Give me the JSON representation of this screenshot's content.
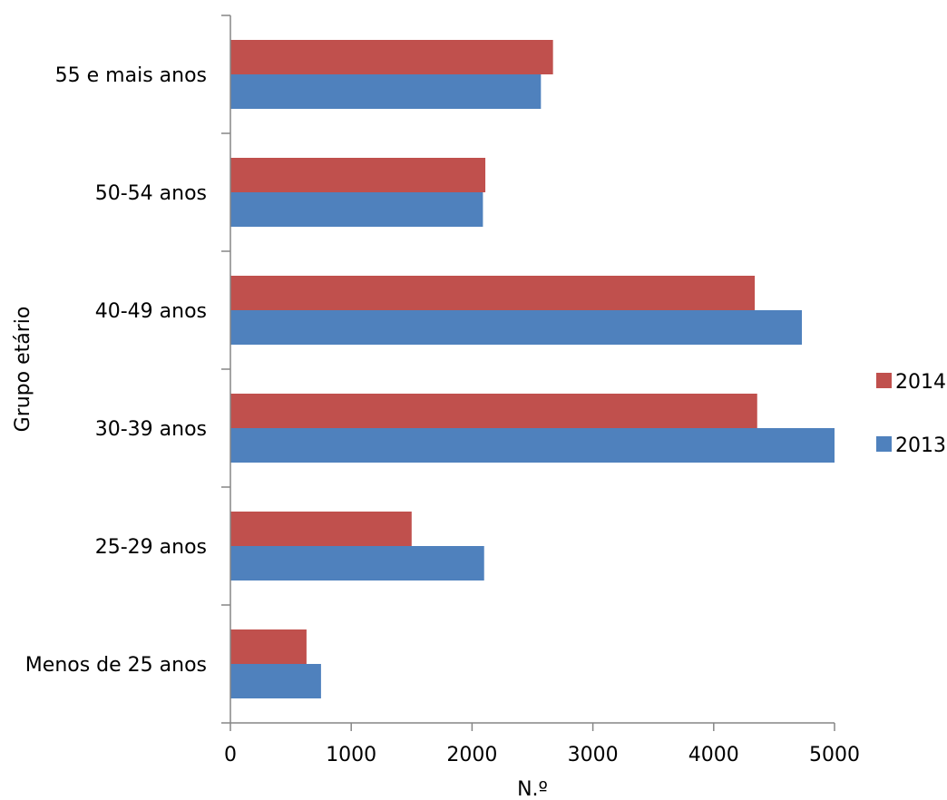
{
  "chart_data": {
    "type": "bar",
    "orientation": "horizontal",
    "title": "",
    "xlabel": "N.º",
    "ylabel": "Grupo etário",
    "categories": [
      "55 e mais anos",
      "50-54 anos",
      "40-49 anos",
      "30-39 anos",
      "25-29 anos",
      "Menos de 25 anos"
    ],
    "series": [
      {
        "name": "2014",
        "color": "#C0504D",
        "values": [
          2670,
          2110,
          4340,
          4360,
          1500,
          630
        ]
      },
      {
        "name": "2013",
        "color": "#4F81BD",
        "values": [
          2570,
          2090,
          4730,
          5000,
          2100,
          750
        ]
      }
    ],
    "xlim": [
      0,
      5000
    ],
    "xticks": [
      "0",
      "1000",
      "2000",
      "3000",
      "4000",
      "5000"
    ],
    "grid": false,
    "legend_position": "right"
  }
}
